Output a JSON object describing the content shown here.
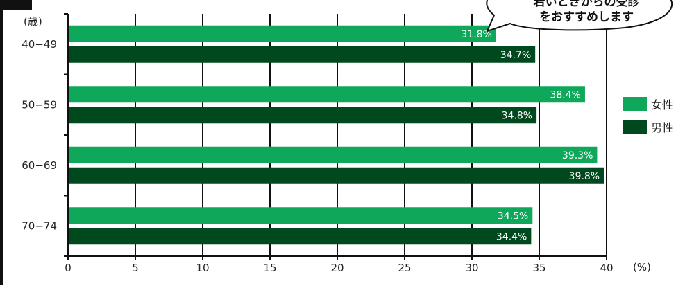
{
  "chart_data": {
    "type": "bar",
    "orientation": "horizontal",
    "categories": [
      "40-49",
      "50-59",
      "60-69",
      "70-74"
    ],
    "series": [
      {
        "name": "女性",
        "color": "#0fa85a",
        "values": [
          31.8,
          38.4,
          39.3,
          34.5
        ]
      },
      {
        "name": "男性",
        "color": "#00491e",
        "values": [
          34.7,
          34.8,
          39.8,
          34.4
        ]
      }
    ],
    "value_labels": {
      "女性": [
        "31.8%",
        "38.4%",
        "39.3%",
        "34.5%"
      ],
      "男性": [
        "34.7%",
        "34.8%",
        "39.8%",
        "34.4%"
      ]
    },
    "xlabel": "(%)",
    "ylabel": "(歳)",
    "xlim": [
      0,
      40
    ],
    "xticks": [
      0,
      5,
      10,
      15,
      20,
      25,
      30,
      35,
      40
    ],
    "category_labels": [
      "40−49",
      "50−59",
      "60−69",
      "70−74"
    ],
    "grid": "vertical",
    "legend_position": "right",
    "callout": {
      "lines": [
        "若いときからの受診",
        "をおすすめします"
      ]
    }
  }
}
